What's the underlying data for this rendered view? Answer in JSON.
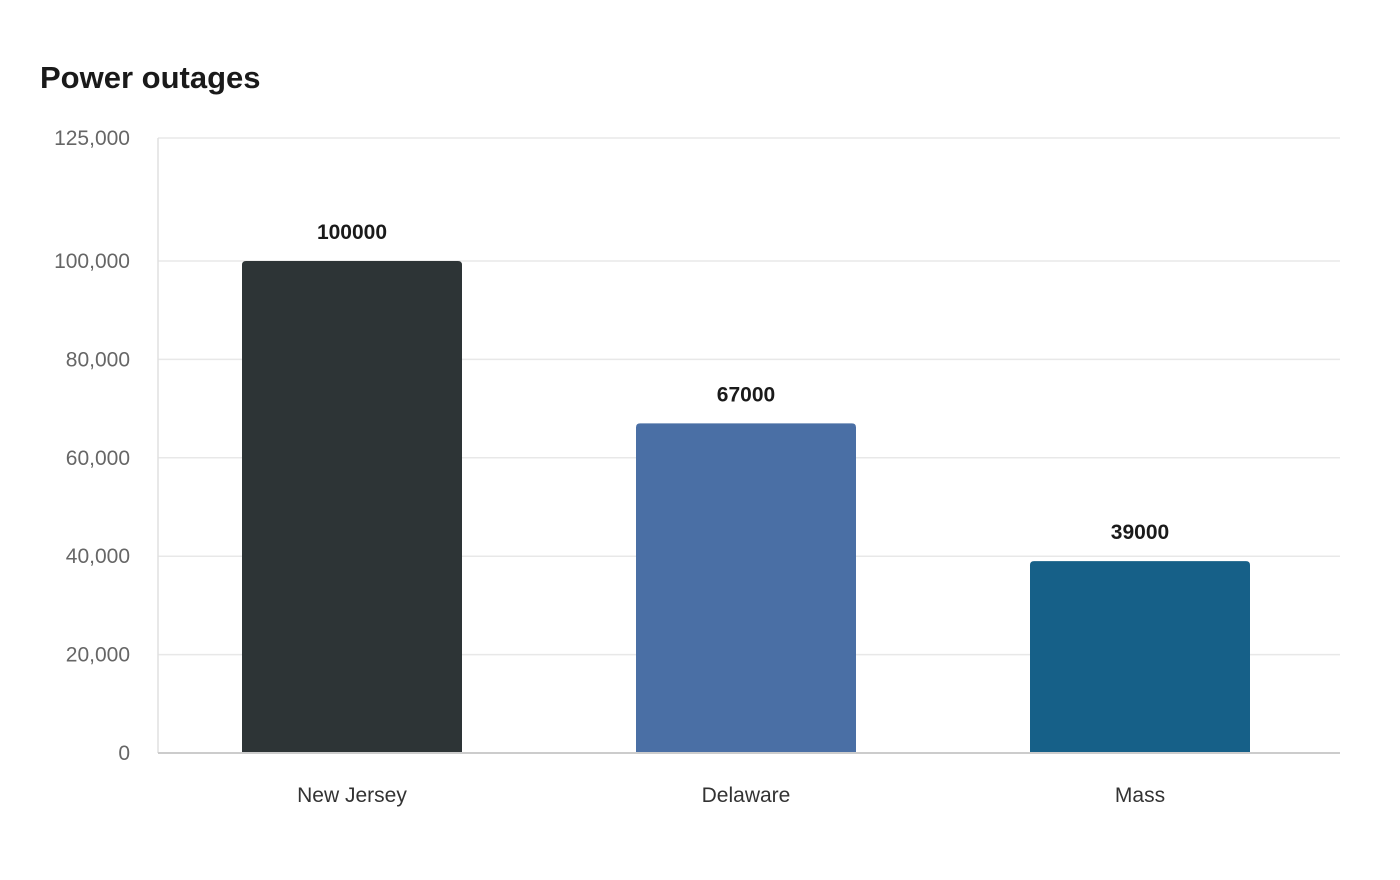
{
  "chart_data": {
    "type": "bar",
    "title": "Power outages",
    "xlabel": "",
    "ylabel": "",
    "categories": [
      "New Jersey",
      "Delaware",
      "Mass"
    ],
    "values": [
      100000,
      67000,
      39000
    ],
    "data_labels": [
      "100000",
      "67000",
      "39000"
    ],
    "bar_colors": [
      "#2d3436",
      "#4a6fa5",
      "#166088"
    ],
    "ylim": [
      0,
      125000
    ],
    "yticks": [
      0,
      20000,
      40000,
      60000,
      80000,
      100000,
      125000
    ],
    "ytick_labels": [
      "0",
      "20,000",
      "40,000",
      "60,000",
      "80,000",
      "100,000",
      "125,000"
    ],
    "grid": true,
    "legend": "none"
  }
}
